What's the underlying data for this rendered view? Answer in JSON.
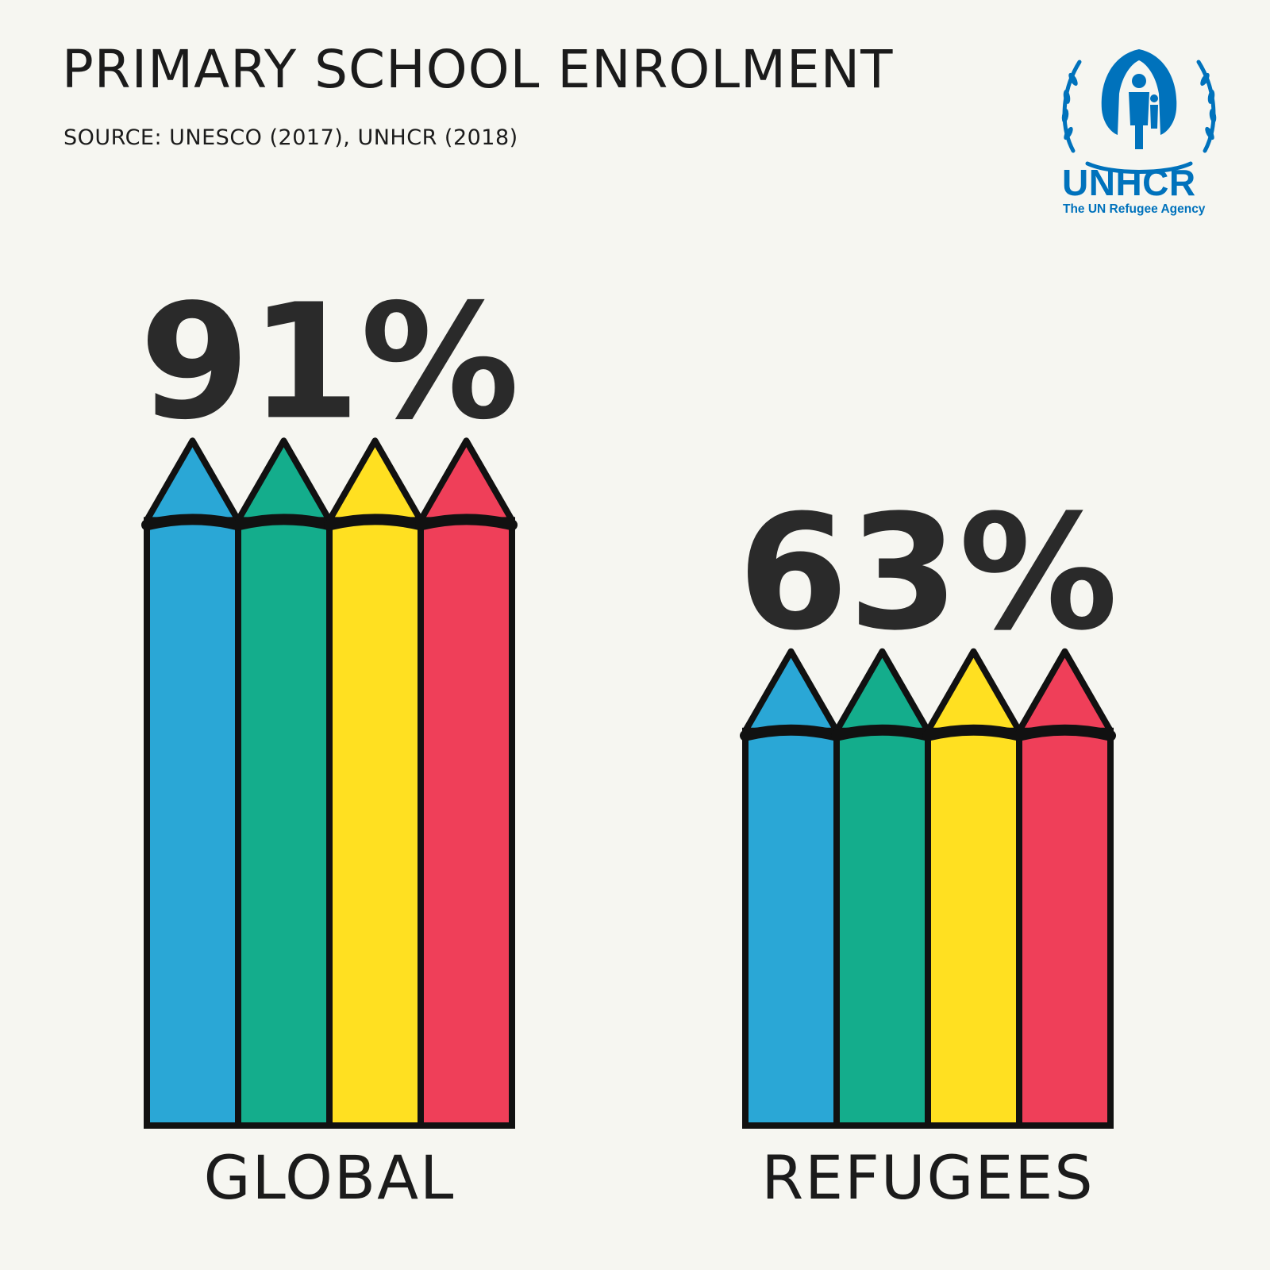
{
  "header": {
    "title": "PRIMARY SCHOOL ENROLMENT",
    "source": "SOURCE: UNESCO (2017), UNHCR (2018)"
  },
  "logo": {
    "wordmark": "UNHCR",
    "tagline": "The UN Refugee Agency",
    "color": "#0072bc"
  },
  "chart_data": {
    "type": "bar",
    "title": "PRIMARY SCHOOL ENROLMENT",
    "categories": [
      "GLOBAL",
      "REFUGEES"
    ],
    "values": [
      91,
      63
    ],
    "value_labels": [
      "91%",
      "63%"
    ],
    "unit": "%",
    "ylim": [
      0,
      100
    ],
    "grid": false,
    "legend": "none",
    "pencil_colors": [
      "#2aa7d6",
      "#14ad8c",
      "#ffe021",
      "#ef3f59"
    ]
  }
}
